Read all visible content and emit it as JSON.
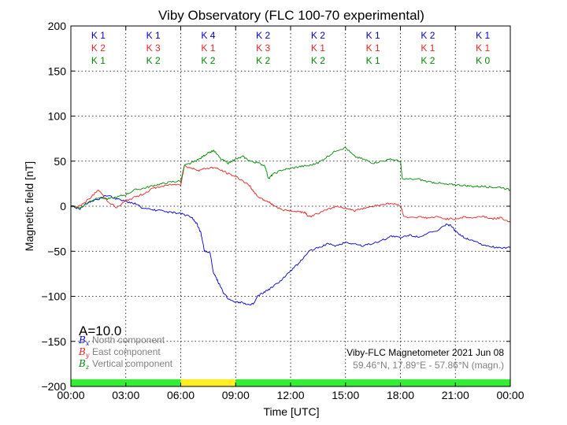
{
  "chart_data": {
    "type": "line",
    "title": "Viby Observatory (FLC 100-70 experimental)",
    "xlabel": "Time [UTC]",
    "ylabel": "Magnetic field [nT]",
    "xlim": [
      0,
      24
    ],
    "ylim": [
      -200,
      200
    ],
    "x_tick_labels": [
      "00:00",
      "03:00",
      "06:00",
      "09:00",
      "12:00",
      "15:00",
      "18:00",
      "21:00",
      "00:00"
    ],
    "y_tick_labels": [
      "200",
      "150",
      "100",
      "50",
      "0",
      "−50",
      "−100",
      "−150",
      "−200"
    ],
    "grid": true,
    "k_index": {
      "x_k": [
        "K 1",
        "K 1",
        "K 4",
        "K 2",
        "K 2",
        "K 1",
        "K 2",
        "K 1"
      ],
      "y_k": [
        "K 2",
        "K 3",
        "K 1",
        "K 3",
        "K 1",
        "K 1",
        "K 1",
        "K 1"
      ],
      "z_k": [
        "K 1",
        "K 2",
        "K 2",
        "K 2",
        "K 2",
        "K 1",
        "K 2",
        "K 0"
      ]
    },
    "activity_bar": [
      {
        "start": 0,
        "end": 6,
        "color": "#33ee33"
      },
      {
        "start": 6,
        "end": 9,
        "color": "#ffee22"
      },
      {
        "start": 9,
        "end": 24,
        "color": "#33ee33"
      }
    ],
    "a_index": "A=10.0",
    "legend": [
      {
        "symbol": "B",
        "sub": "x",
        "text": "North component",
        "color": "#0000cc"
      },
      {
        "symbol": "B",
        "sub": "y",
        "text": "East component",
        "color": "#ee2222"
      },
      {
        "symbol": "B",
        "sub": "z",
        "text": "Vertical component",
        "color": "#008800"
      }
    ],
    "info_line1": "Viby-FLC Magnetometer 2021 Jun 08",
    "info_line2": "59.46°N, 17.89°E - 57.86°N (magn.)",
    "series": [
      {
        "name": "North component",
        "color": "#0000cc",
        "points": [
          [
            0,
            0
          ],
          [
            0.5,
            -3
          ],
          [
            1,
            5
          ],
          [
            1.5,
            8
          ],
          [
            2,
            12
          ],
          [
            2.5,
            8
          ],
          [
            3,
            5
          ],
          [
            3.5,
            3
          ],
          [
            4,
            -3
          ],
          [
            4.5,
            -4
          ],
          [
            5,
            -5
          ],
          [
            5.5,
            -7
          ],
          [
            6,
            -8
          ],
          [
            6.3,
            -10
          ],
          [
            6.6,
            -12
          ],
          [
            6.9,
            -20
          ],
          [
            7.1,
            -30
          ],
          [
            7.3,
            -50
          ],
          [
            7.6,
            -52
          ],
          [
            7.8,
            -75
          ],
          [
            8,
            -82
          ],
          [
            8.3,
            -95
          ],
          [
            8.6,
            -103
          ],
          [
            9,
            -106
          ],
          [
            9.4,
            -107
          ],
          [
            9.8,
            -110
          ],
          [
            10,
            -108
          ],
          [
            10.2,
            -100
          ],
          [
            10.6,
            -95
          ],
          [
            11,
            -90
          ],
          [
            11.5,
            -82
          ],
          [
            12,
            -72
          ],
          [
            12.5,
            -62
          ],
          [
            13,
            -50
          ],
          [
            13.5,
            -46
          ],
          [
            14,
            -42
          ],
          [
            14.5,
            -44
          ],
          [
            15,
            -40
          ],
          [
            15.5,
            -42
          ],
          [
            16,
            -44
          ],
          [
            16.5,
            -41
          ],
          [
            17,
            -38
          ],
          [
            17.5,
            -33
          ],
          [
            18,
            -35
          ],
          [
            18.5,
            -32
          ],
          [
            19,
            -34
          ],
          [
            19.5,
            -30
          ],
          [
            20,
            -28
          ],
          [
            20.5,
            -20
          ],
          [
            20.8,
            -22
          ],
          [
            21,
            -28
          ],
          [
            21.3,
            -32
          ],
          [
            21.6,
            -36
          ],
          [
            22,
            -38
          ],
          [
            22.5,
            -43
          ],
          [
            23,
            -45
          ],
          [
            23.5,
            -46
          ],
          [
            24,
            -46
          ]
        ]
      },
      {
        "name": "East component",
        "color": "#ee2222",
        "points": [
          [
            0,
            0
          ],
          [
            0.5,
            0
          ],
          [
            1,
            8
          ],
          [
            1.5,
            18
          ],
          [
            2,
            6
          ],
          [
            2.5,
            -2
          ],
          [
            3,
            6
          ],
          [
            3.5,
            10
          ],
          [
            4,
            14
          ],
          [
            4.5,
            20
          ],
          [
            5,
            22
          ],
          [
            5.5,
            24
          ],
          [
            6,
            24
          ],
          [
            6.2,
            45
          ],
          [
            6.6,
            42
          ],
          [
            7,
            40
          ],
          [
            7.4,
            42
          ],
          [
            7.8,
            43
          ],
          [
            8.2,
            40
          ],
          [
            8.6,
            36
          ],
          [
            9,
            33
          ],
          [
            9.4,
            28
          ],
          [
            9.8,
            22
          ],
          [
            10,
            15
          ],
          [
            10.4,
            8
          ],
          [
            10.8,
            5
          ],
          [
            11,
            2
          ],
          [
            11.5,
            -4
          ],
          [
            12,
            -5
          ],
          [
            12.5,
            -6
          ],
          [
            12.8,
            -7
          ],
          [
            13,
            -12
          ],
          [
            13.5,
            -8
          ],
          [
            14,
            -4
          ],
          [
            14.5,
            0
          ],
          [
            15,
            -2
          ],
          [
            15.5,
            -5
          ],
          [
            16,
            -2
          ],
          [
            16.5,
            0
          ],
          [
            17,
            2
          ],
          [
            17.5,
            3
          ],
          [
            18,
            1
          ],
          [
            18.2,
            -12
          ],
          [
            19,
            -12
          ],
          [
            19.5,
            -13
          ],
          [
            20,
            -12
          ],
          [
            20.5,
            -14
          ],
          [
            21,
            -14
          ],
          [
            21.5,
            -12
          ],
          [
            22,
            -13
          ],
          [
            22.5,
            -11
          ],
          [
            23,
            -14
          ],
          [
            23.5,
            -13
          ],
          [
            24,
            -18
          ]
        ]
      },
      {
        "name": "Vertical component",
        "color": "#008800",
        "points": [
          [
            0,
            0
          ],
          [
            0.5,
            -2
          ],
          [
            1,
            5
          ],
          [
            1.5,
            10
          ],
          [
            2,
            8
          ],
          [
            2.5,
            10
          ],
          [
            3,
            13
          ],
          [
            3.5,
            18
          ],
          [
            4,
            20
          ],
          [
            4.5,
            23
          ],
          [
            5,
            25
          ],
          [
            5.5,
            27
          ],
          [
            6,
            28
          ],
          [
            6.2,
            45
          ],
          [
            6.6,
            48
          ],
          [
            7,
            52
          ],
          [
            7.4,
            58
          ],
          [
            7.8,
            62
          ],
          [
            8.2,
            52
          ],
          [
            8.6,
            48
          ],
          [
            9,
            52
          ],
          [
            9.4,
            55
          ],
          [
            9.8,
            50
          ],
          [
            10.2,
            48
          ],
          [
            10.6,
            45
          ],
          [
            10.8,
            30
          ],
          [
            11,
            35
          ],
          [
            11.5,
            40
          ],
          [
            12,
            42
          ],
          [
            12.5,
            44
          ],
          [
            13,
            45
          ],
          [
            13.5,
            48
          ],
          [
            14,
            55
          ],
          [
            14.5,
            62
          ],
          [
            15,
            65
          ],
          [
            15.5,
            55
          ],
          [
            16,
            52
          ],
          [
            16.5,
            48
          ],
          [
            17,
            50
          ],
          [
            17.5,
            52
          ],
          [
            18,
            50
          ],
          [
            18.1,
            30
          ],
          [
            19,
            30
          ],
          [
            19.5,
            27
          ],
          [
            20,
            26
          ],
          [
            20.5,
            24
          ],
          [
            21,
            24
          ],
          [
            21.5,
            23
          ],
          [
            22,
            22
          ],
          [
            22.5,
            22
          ],
          [
            23,
            21
          ],
          [
            23.5,
            21
          ],
          [
            24,
            18
          ]
        ]
      }
    ]
  }
}
